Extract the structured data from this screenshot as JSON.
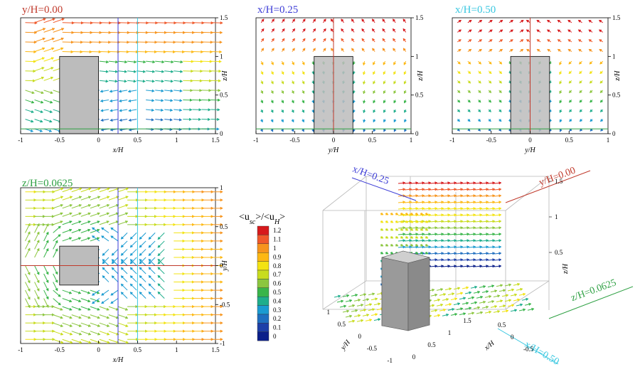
{
  "figure": {
    "colorbar": {
      "title_left": "<u",
      "title_sub1": "sc",
      "title_mid": ">/<u",
      "title_sub2": "H",
      "title_right": ">",
      "levels": [
        {
          "label": "1.2",
          "color": "#d7191c"
        },
        {
          "label": "1.1",
          "color": "#f0592b"
        },
        {
          "label": "1",
          "color": "#f7941d"
        },
        {
          "label": "0.9",
          "color": "#fdb813"
        },
        {
          "label": "0.8",
          "color": "#f3e312"
        },
        {
          "label": "0.7",
          "color": "#c8dc1e"
        },
        {
          "label": "0.6",
          "color": "#8cc63f"
        },
        {
          "label": "0.5",
          "color": "#39b54a"
        },
        {
          "label": "0.4",
          "color": "#1fae8c"
        },
        {
          "label": "0.3",
          "color": "#1b9bd1"
        },
        {
          "label": "0.2",
          "color": "#1f6fc0"
        },
        {
          "label": "0.1",
          "color": "#1d3fa8"
        },
        {
          "label": "0",
          "color": "#0b1f8a"
        }
      ]
    },
    "panel3d": {
      "labels": {
        "xH025": "x/H=0.25",
        "yH000": "y/H=0.00",
        "zH00625": "z/H=0.0625",
        "xH050": "x/H=0.50",
        "axis_z": "z/H",
        "axis_y": "y/H",
        "axis_x": "x/H"
      },
      "z_ticks": [
        "0.5",
        "1",
        "1.5"
      ],
      "y_ticks": [
        "1",
        "0.5",
        "0",
        "-0.5",
        "-1"
      ],
      "x_ticks": [
        "0",
        "0.5",
        "1",
        "1.5"
      ],
      "extra_ticks": [
        "0.5",
        "0",
        "-0.5"
      ]
    }
  },
  "chart_data": [
    {
      "type": "vector-field",
      "title": "y/H=0.00",
      "title_color": "#c0392b",
      "xlabel": "x/H",
      "ylabel": "z/H",
      "xlim": [
        -1,
        1.5
      ],
      "ylim": [
        0,
        1.5
      ],
      "xticks": [
        -1,
        -0.5,
        0,
        0.5,
        1,
        1.5
      ],
      "yticks": [
        0,
        0.5,
        1,
        1.5
      ],
      "obstacle": {
        "x": [
          -0.5,
          0
        ],
        "z": [
          0,
          1
        ]
      },
      "reference_lines": [
        {
          "orientation": "horizontal",
          "value": 0.0625,
          "color": "#2ea043"
        },
        {
          "orientation": "vertical",
          "value": 0.25,
          "color": "#3b3bd6"
        },
        {
          "orientation": "vertical",
          "value": 0.5,
          "color": "#38c7e0"
        }
      ]
    },
    {
      "type": "vector-field",
      "title": "x/H=0.25",
      "title_color": "#3b3bd6",
      "xlabel": "y/H",
      "ylabel": "z/H",
      "xlim": [
        -1,
        1
      ],
      "ylim": [
        0,
        1.5
      ],
      "xticks": [
        -1,
        -0.5,
        0,
        0.5,
        1
      ],
      "yticks": [
        0,
        0.5,
        1,
        1.5
      ],
      "obstacle": {
        "x": [
          -0.25,
          0.25
        ],
        "z": [
          0,
          1
        ]
      },
      "reference_lines": [
        {
          "orientation": "horizontal",
          "value": 0.0625,
          "color": "#2ea043"
        },
        {
          "orientation": "vertical",
          "value": 0,
          "color": "#c0392b"
        }
      ]
    },
    {
      "type": "vector-field",
      "title": "x/H=0.50",
      "title_color": "#38c7e0",
      "xlabel": "y/H",
      "ylabel": "z/H",
      "xlim": [
        -1,
        1
      ],
      "ylim": [
        0,
        1.5
      ],
      "xticks": [
        -1,
        -0.5,
        0,
        0.5,
        1
      ],
      "yticks": [
        0,
        0.5,
        1,
        1.5
      ],
      "obstacle": {
        "x": [
          -0.25,
          0.25
        ],
        "z": [
          0,
          1
        ]
      },
      "reference_lines": [
        {
          "orientation": "horizontal",
          "value": 0.0625,
          "color": "#2ea043"
        },
        {
          "orientation": "vertical",
          "value": 0,
          "color": "#c0392b"
        }
      ]
    },
    {
      "type": "vector-field",
      "title": "z/H=0.0625",
      "title_color": "#2ea043",
      "xlabel": "x/H",
      "ylabel": "y/H",
      "xlim": [
        -1,
        1.5
      ],
      "ylim": [
        -1,
        1
      ],
      "xticks": [
        -1,
        -0.5,
        0,
        0.5,
        1,
        1.5
      ],
      "yticks": [
        -1,
        -0.5,
        0,
        0.5,
        1
      ],
      "obstacle": {
        "x": [
          -0.5,
          0
        ],
        "y": [
          -0.25,
          0.25
        ]
      },
      "reference_lines": [
        {
          "orientation": "horizontal",
          "value": 0,
          "color": "#c0392b"
        },
        {
          "orientation": "vertical",
          "value": 0.25,
          "color": "#3b3bd6"
        },
        {
          "orientation": "vertical",
          "value": 0.5,
          "color": "#38c7e0"
        }
      ]
    }
  ]
}
